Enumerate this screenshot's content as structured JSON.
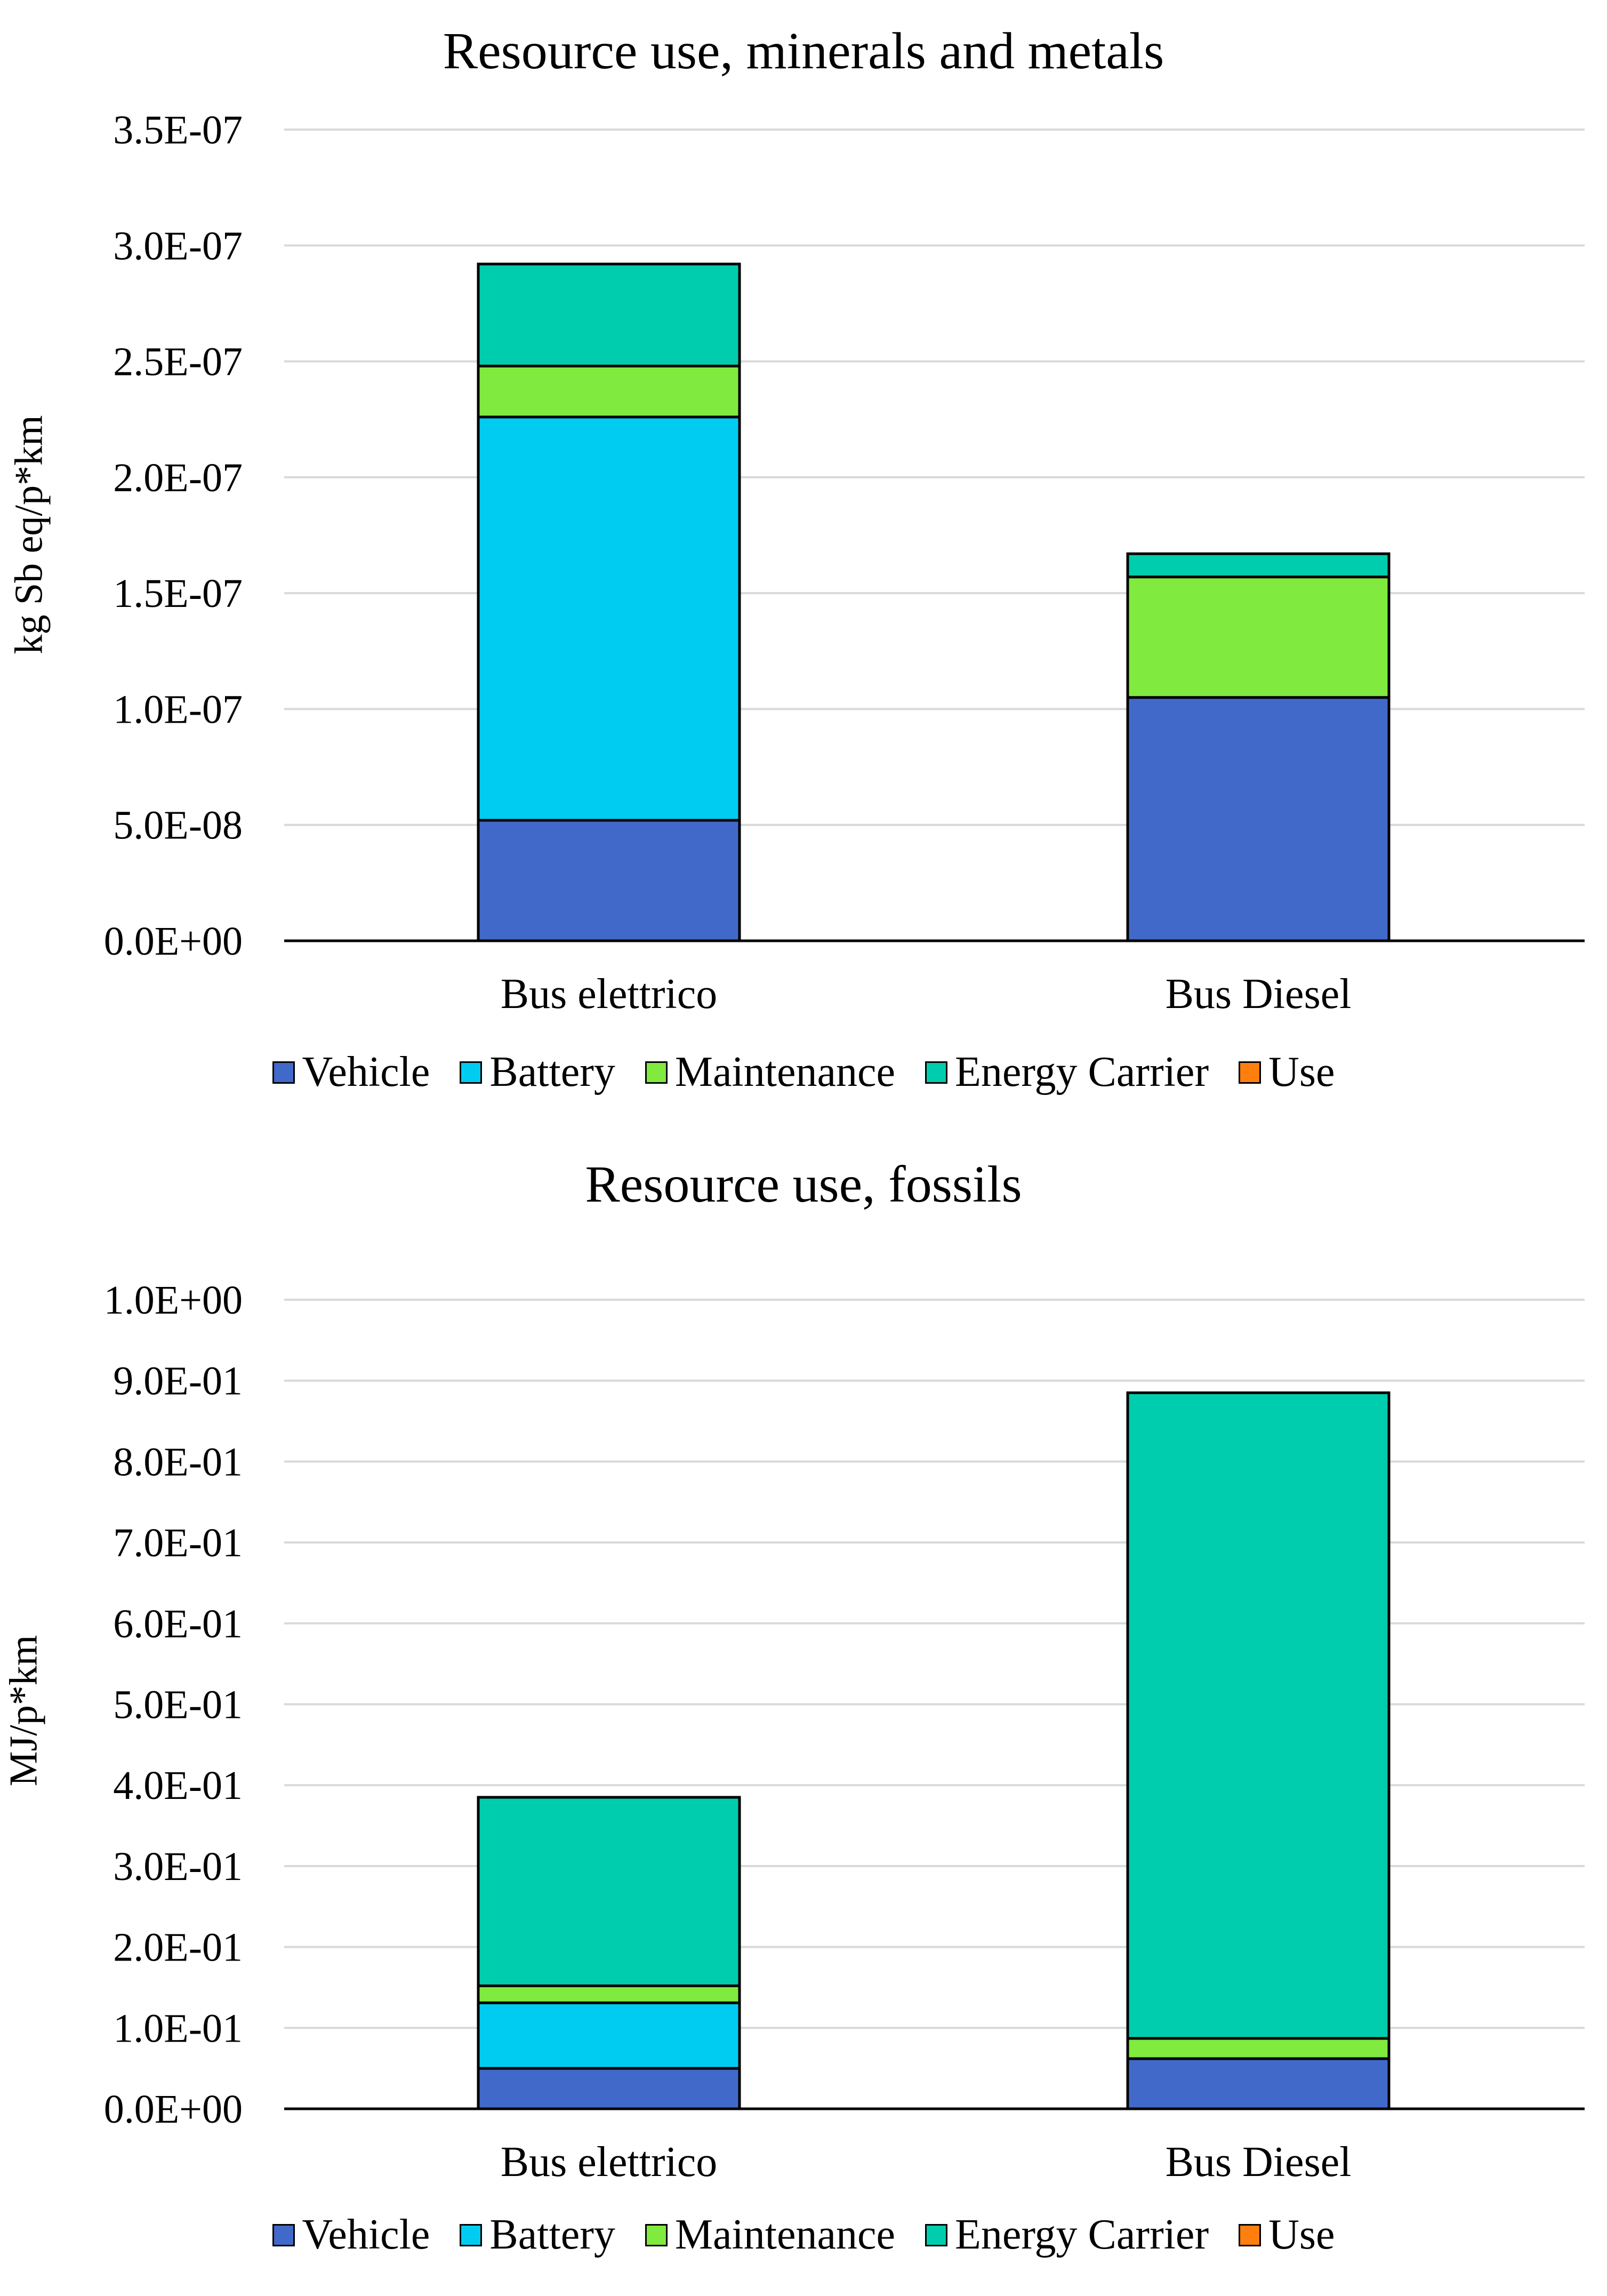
{
  "chart_data": [
    {
      "type": "bar",
      "stacked": true,
      "title": "Resource use, minerals and metals",
      "ylabel": "kg Sb eq/p*km",
      "xlabel": "",
      "categories": [
        "Bus elettrico",
        "Bus Diesel"
      ],
      "ylim": [
        0,
        3.5e-07
      ],
      "yticks": [
        0,
        5e-08,
        1e-07,
        1.5e-07,
        2e-07,
        2.5e-07,
        3e-07,
        3.5e-07
      ],
      "ytick_labels": [
        "0.0E+00",
        "5.0E-08",
        "1.0E-07",
        "1.5E-07",
        "2.0E-07",
        "2.5E-07",
        "3.0E-07",
        "3.5E-07"
      ],
      "grid": true,
      "legend_position": "bottom",
      "series": [
        {
          "name": "Vehicle",
          "color": "#4169C9",
          "values": [
            5.2e-08,
            1.05e-07
          ]
        },
        {
          "name": "Battery",
          "color": "#00CCF2",
          "values": [
            1.74e-07,
            0
          ]
        },
        {
          "name": "Maintenance",
          "color": "#80EA3E",
          "values": [
            2.2e-08,
            5.2e-08
          ]
        },
        {
          "name": "Energy Carrier",
          "color": "#00CDAE",
          "values": [
            4.4e-08,
            1e-08
          ]
        },
        {
          "name": "Use",
          "color": "#FF7F0E",
          "values": [
            0,
            0
          ]
        }
      ]
    },
    {
      "type": "bar",
      "stacked": true,
      "title": "Resource use, fossils",
      "ylabel": "MJ/p*km",
      "xlabel": "",
      "categories": [
        "Bus elettrico",
        "Bus Diesel"
      ],
      "ylim": [
        0,
        1.0
      ],
      "yticks": [
        0,
        0.1,
        0.2,
        0.3,
        0.4,
        0.5,
        0.6,
        0.7,
        0.8,
        0.9,
        1.0
      ],
      "ytick_labels": [
        "0.0E+00",
        "1.0E-01",
        "2.0E-01",
        "3.0E-01",
        "4.0E-01",
        "5.0E-01",
        "6.0E-01",
        "7.0E-01",
        "8.0E-01",
        "9.0E-01",
        "1.0E+00"
      ],
      "grid": true,
      "legend_position": "bottom",
      "series": [
        {
          "name": "Vehicle",
          "color": "#4169C9",
          "values": [
            0.05,
            0.062
          ]
        },
        {
          "name": "Battery",
          "color": "#00CCF2",
          "values": [
            0.081,
            0
          ]
        },
        {
          "name": "Maintenance",
          "color": "#80EA3E",
          "values": [
            0.021,
            0.025
          ]
        },
        {
          "name": "Energy Carrier",
          "color": "#00CDAE",
          "values": [
            0.233,
            0.798
          ]
        },
        {
          "name": "Use",
          "color": "#FF7F0E",
          "values": [
            0,
            0
          ]
        }
      ]
    }
  ]
}
